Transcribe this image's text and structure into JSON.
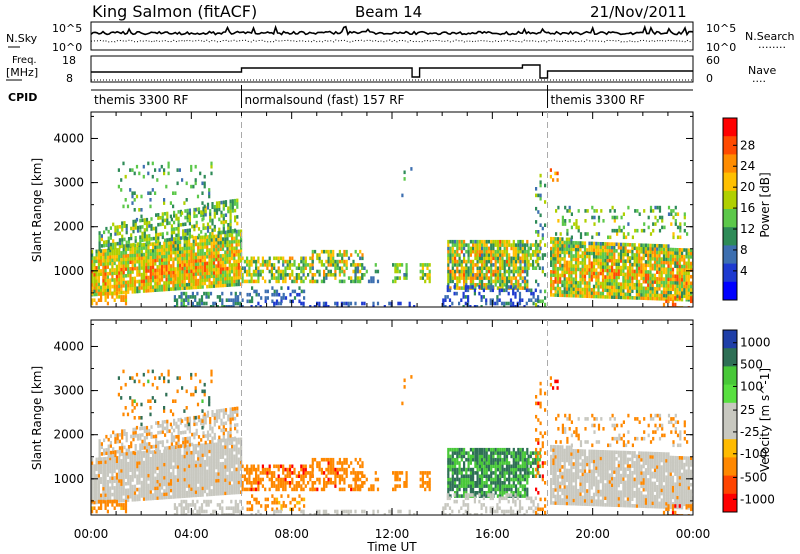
{
  "header": {
    "station": "King Salmon (fitACF)",
    "beam": "Beam 14",
    "date": "21/Nov/2011"
  },
  "noise_panel": {
    "left_label": "N.Sky",
    "left_ticks": [
      "10^5",
      "10^0"
    ],
    "right_ticks": [
      "10^5",
      "10^0"
    ],
    "right_label": "N.Search",
    "right_dots": "........"
  },
  "freq_panel": {
    "left_label_1": "Freq.",
    "left_label_2": "[MHz]",
    "left_ticks": [
      "18",
      "8"
    ],
    "right_ticks": [
      "60",
      "0"
    ],
    "right_label": "Nave",
    "right_dots": "...."
  },
  "cpid": {
    "label": "CPID",
    "segments": [
      {
        "text": "themis 3300 RF",
        "start_h": 0.0,
        "end_h": 6.0
      },
      {
        "text": "normalsound (fast) 157 RF",
        "start_h": 6.0,
        "end_h": 18.2
      },
      {
        "text": "themis 3300 RF",
        "start_h": 18.2,
        "end_h": 24.0
      }
    ]
  },
  "chart_data": [
    {
      "type": "heatmap",
      "name": "power",
      "ylabel": "Slant Range [km]",
      "y_ticks": [
        "4000",
        "3000",
        "2000",
        "1000"
      ],
      "y_tick_values": [
        4000,
        3000,
        2000,
        1000
      ],
      "ylim": [
        180,
        4600
      ],
      "colorbar_label": "Power [dB]",
      "colorbar_ticks": [
        "28",
        "24",
        "20",
        "16",
        "12",
        "8",
        "4"
      ],
      "colorbar_colors": [
        "#ff0000",
        "#ff4a00",
        "#ff8c00",
        "#ffc000",
        "#b0d000",
        "#5cc84a",
        "#2e8b57",
        "#3d6fb0",
        "#1e3ad0",
        "#0000ff"
      ]
    },
    {
      "type": "heatmap",
      "name": "velocity",
      "ylabel": "Slant Range [km]",
      "y_ticks": [
        "4000",
        "3000",
        "2000",
        "1000"
      ],
      "y_tick_values": [
        4000,
        3000,
        2000,
        1000
      ],
      "ylim": [
        180,
        4600
      ],
      "colorbar_label": "Velocity [m s^-1]",
      "colorbar_ticks": [
        "1000",
        "500",
        "100",
        "25",
        "-25",
        "-100",
        "-500",
        "-1000"
      ],
      "colorbar_colors": [
        "#1f3fa8",
        "#2e6f55",
        "#48c838",
        "#58e040",
        "#c8c8c0",
        "#c8c8c0",
        "#ffbb00",
        "#ff8800",
        "#ff4400",
        "#ff0000"
      ]
    }
  ],
  "x_axis": {
    "label": "Time UT",
    "tick_labels": [
      "00:00",
      "04:00",
      "08:00",
      "12:00",
      "16:00",
      "20:00",
      "00:00"
    ],
    "tick_hours": [
      0,
      4,
      8,
      12,
      16,
      20,
      24
    ]
  }
}
